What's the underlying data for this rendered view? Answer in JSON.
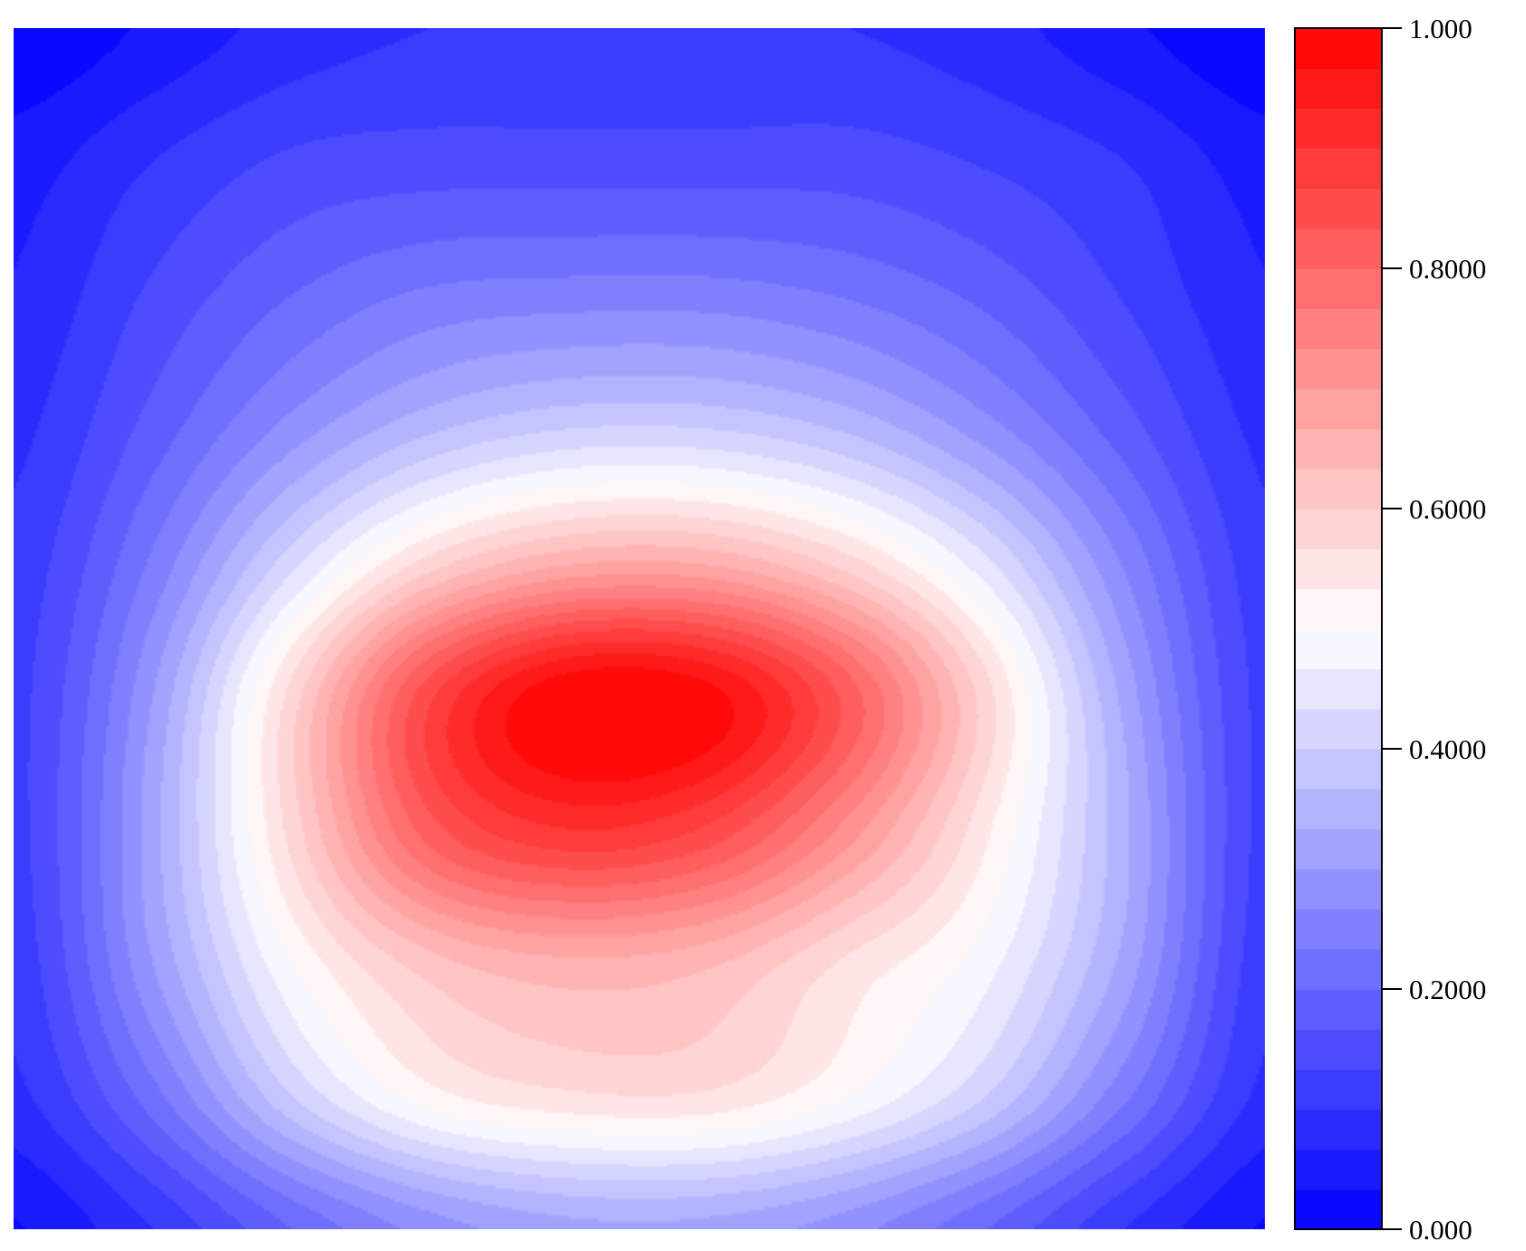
{
  "chart_data": {
    "type": "heatmap",
    "title": "",
    "xlabel": "",
    "ylabel": "",
    "value_range": [
      0,
      1
    ],
    "colormap": {
      "name": "blue-white-red",
      "low": "#0000FF",
      "mid": "#FFFFFF",
      "high": "#FF0000",
      "levels": 30
    },
    "colorbar": {
      "position": "right",
      "ticks": [
        {
          "value": 0,
          "label": "0.000"
        },
        {
          "value": 0.2,
          "label": "0.2000"
        },
        {
          "value": 0.4,
          "label": "0.4000"
        },
        {
          "value": 0.6,
          "label": "0.6000"
        },
        {
          "value": 0.8,
          "label": "0.8000"
        },
        {
          "value": 1,
          "label": "1.000"
        }
      ]
    },
    "field": {
      "grid": "10x10, rows top to bottom, columns left to right",
      "values": [
        [
          0.0,
          0.04,
          0.08,
          0.1,
          0.1,
          0.1,
          0.1,
          0.08,
          0.04,
          0.0
        ],
        [
          0.05,
          0.1,
          0.14,
          0.15,
          0.15,
          0.15,
          0.15,
          0.13,
          0.1,
          0.05
        ],
        [
          0.07,
          0.14,
          0.2,
          0.24,
          0.25,
          0.25,
          0.23,
          0.19,
          0.13,
          0.07
        ],
        [
          0.09,
          0.18,
          0.28,
          0.36,
          0.4,
          0.4,
          0.36,
          0.28,
          0.18,
          0.09
        ],
        [
          0.11,
          0.24,
          0.42,
          0.58,
          0.66,
          0.66,
          0.58,
          0.44,
          0.26,
          0.11
        ],
        [
          0.12,
          0.3,
          0.58,
          0.86,
          1.0,
          0.98,
          0.82,
          0.58,
          0.32,
          0.12
        ],
        [
          0.12,
          0.32,
          0.58,
          0.82,
          0.9,
          0.86,
          0.72,
          0.54,
          0.34,
          0.12
        ],
        [
          0.11,
          0.3,
          0.5,
          0.62,
          0.66,
          0.64,
          0.56,
          0.48,
          0.32,
          0.11
        ],
        [
          0.09,
          0.22,
          0.4,
          0.52,
          0.56,
          0.56,
          0.5,
          0.4,
          0.24,
          0.09
        ],
        [
          0.03,
          0.1,
          0.2,
          0.28,
          0.32,
          0.32,
          0.28,
          0.2,
          0.1,
          0.03
        ]
      ]
    }
  }
}
